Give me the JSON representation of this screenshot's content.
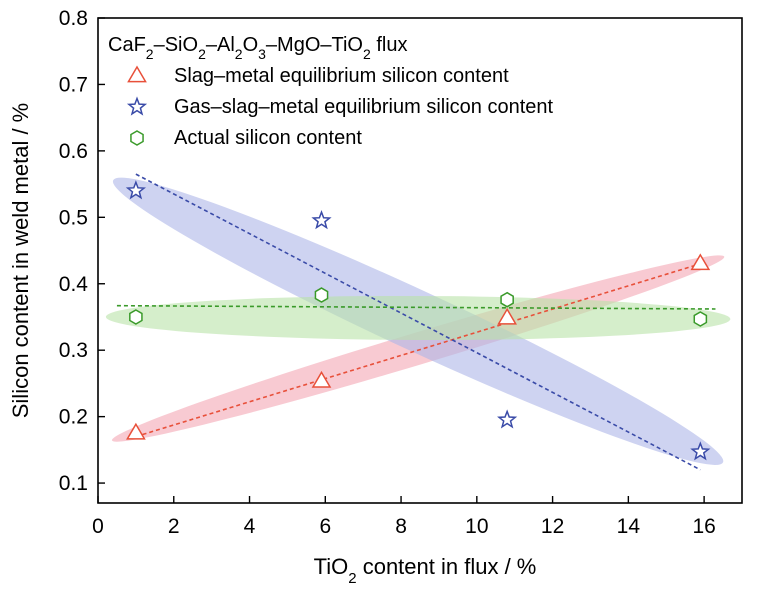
{
  "chart_data": {
    "type": "scatter",
    "xlabel": {
      "pre": "TiO",
      "sub": "2",
      "post": " content in flux / %"
    },
    "ylabel": "Silicon content in weld metal / %",
    "xlim": [
      0,
      17
    ],
    "ylim": [
      0.07,
      0.8
    ],
    "xticks": [
      0,
      2,
      4,
      6,
      8,
      10,
      12,
      14,
      16
    ],
    "yticks": [
      0.1,
      0.2,
      0.3,
      0.4,
      0.5,
      0.6,
      0.7,
      0.8
    ],
    "grid": false,
    "legend_position": "top-left",
    "legend_title": [
      {
        "t": "CaF",
        "sub": false
      },
      {
        "t": "2",
        "sub": true
      },
      {
        "t": "–SiO",
        "sub": false
      },
      {
        "t": "2",
        "sub": true
      },
      {
        "t": "–Al",
        "sub": false
      },
      {
        "t": "2",
        "sub": true
      },
      {
        "t": "O",
        "sub": false
      },
      {
        "t": "3",
        "sub": true
      },
      {
        "t": "–MgO–TiO",
        "sub": false
      },
      {
        "t": "2",
        "sub": true
      },
      {
        "t": " flux",
        "sub": false
      }
    ],
    "series": [
      {
        "name": "Slag–metal equilibrium silicon content",
        "marker": "triangle",
        "color": "#e8503a",
        "fill_color": "#f4a7b4",
        "x": [
          1.0,
          5.9,
          10.8,
          15.9
        ],
        "y": [
          0.175,
          0.253,
          0.348,
          0.43
        ],
        "trend": [
          [
            1.0,
            0.17
          ],
          [
            15.9,
            0.43
          ]
        ]
      },
      {
        "name": "Gas–slag–metal equilibrium silicon content",
        "marker": "star",
        "color": "#3a4ba8",
        "fill_color": "#aeb6e8",
        "x": [
          1.0,
          5.9,
          10.8,
          15.9
        ],
        "y": [
          0.54,
          0.495,
          0.195,
          0.147
        ],
        "trend": [
          [
            1.0,
            0.565
          ],
          [
            15.9,
            0.12
          ]
        ]
      },
      {
        "name": "Actual silicon content",
        "marker": "hexagon",
        "color": "#3a9a2a",
        "fill_color": "#b9e3a9",
        "x": [
          1.0,
          5.9,
          10.8,
          15.9
        ],
        "y": [
          0.35,
          0.383,
          0.376,
          0.347
        ],
        "trend": [
          [
            0.5,
            0.367
          ],
          [
            16.3,
            0.362
          ]
        ]
      }
    ]
  }
}
